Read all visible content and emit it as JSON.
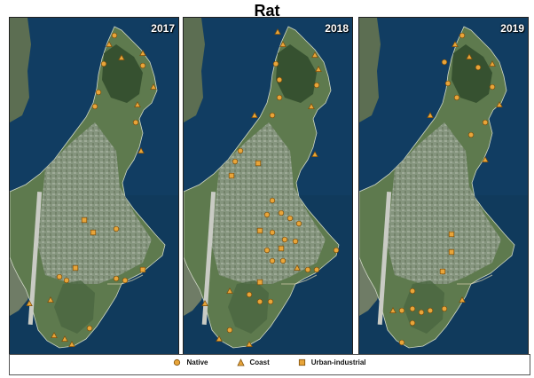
{
  "title": "Rat",
  "marker_colors": {
    "fill": "#e8a53a",
    "stroke": "#7a4d0a"
  },
  "legend": [
    {
      "label": "Native",
      "shape": "circle"
    },
    {
      "label": "Coast",
      "shape": "triangle"
    },
    {
      "label": "Urban-industrial",
      "shape": "square"
    }
  ],
  "panels": [
    {
      "year": "2017"
    },
    {
      "year": "2018"
    },
    {
      "year": "2019"
    }
  ]
}
